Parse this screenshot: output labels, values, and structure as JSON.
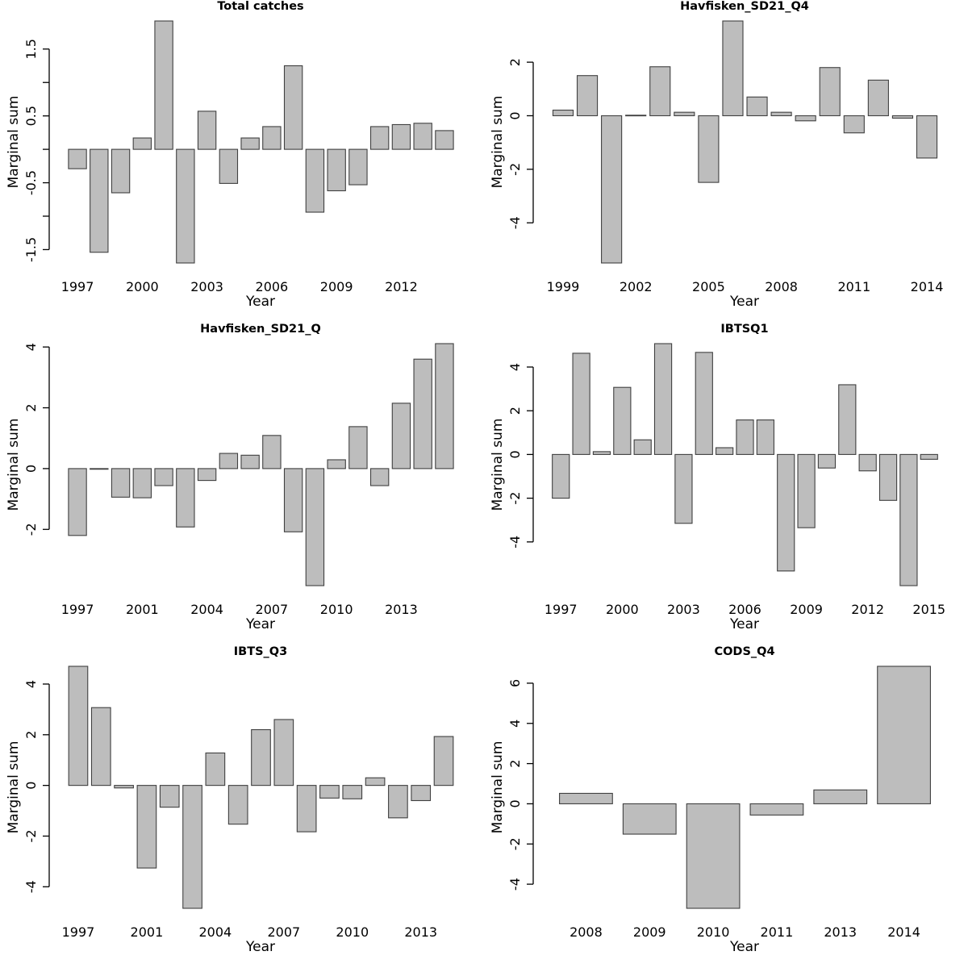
{
  "colors": {
    "background": "#ffffff",
    "bar_fill": "#bdbdbd",
    "bar_stroke": "#404040",
    "axis": "#000000",
    "text": "#000000"
  },
  "chart_data": [
    {
      "type": "bar",
      "title": "Total catches",
      "xlabel": "Year",
      "ylabel": "Marginal sum",
      "categories": [
        1997,
        1998,
        1999,
        2000,
        2001,
        2002,
        2003,
        2004,
        2005,
        2006,
        2007,
        2008,
        2009,
        2010,
        2011,
        2012,
        2013,
        2014
      ],
      "values": [
        -0.29,
        -1.54,
        -0.65,
        0.17,
        1.92,
        -1.7,
        0.57,
        -0.51,
        0.17,
        0.34,
        1.25,
        -0.94,
        -0.62,
        -0.53,
        0.34,
        0.37,
        0.39,
        0.28
      ],
      "ytick_values": [
        -1.5,
        -1,
        -0.5,
        0,
        0.5,
        1,
        1.5
      ],
      "ytick_labels": [
        "-1.5",
        "",
        "-0.5",
        "",
        "0.5",
        "",
        "1.5"
      ],
      "xtick_indices": [
        0,
        3,
        6,
        9,
        12,
        15
      ],
      "xtick_labels": [
        "1997",
        "2000",
        "2003",
        "2006",
        "2009",
        "2012"
      ],
      "grid": false,
      "legend": null
    },
    {
      "type": "bar",
      "title": "Havfisken_SD21_Q4",
      "xlabel": "Year",
      "ylabel": "Marginal sum",
      "categories": [
        1999,
        2000,
        2001,
        2002,
        2003,
        2004,
        2005,
        2006,
        2007,
        2008,
        2009,
        2010,
        2011,
        2012,
        2013,
        2014
      ],
      "values": [
        0.21,
        1.5,
        -5.5,
        0.02,
        1.83,
        0.13,
        -2.49,
        3.54,
        0.7,
        0.13,
        -0.19,
        1.8,
        -0.64,
        1.33,
        -0.09,
        -1.58
      ],
      "ytick_values": [
        -4,
        -2,
        0,
        2
      ],
      "ytick_labels": [
        "-4",
        "-2",
        "0",
        "2"
      ],
      "xtick_indices": [
        0,
        3,
        6,
        9,
        12,
        15
      ],
      "xtick_labels": [
        "1999",
        "2002",
        "2005",
        "2008",
        "2011",
        "2014"
      ],
      "grid": false,
      "legend": null
    },
    {
      "type": "bar",
      "title": "Havfisken_SD21_Q",
      "xlabel": "Year",
      "ylabel": "Marginal sum",
      "categories": [
        1997,
        1999,
        2000,
        2001,
        2002,
        2003,
        2004,
        2005,
        2006,
        2007,
        2008,
        2009,
        2010,
        2011,
        2012,
        2013,
        2014,
        2015
      ],
      "values": [
        -2.2,
        -0.02,
        -0.94,
        -0.96,
        -0.56,
        -1.92,
        -0.39,
        0.5,
        0.44,
        1.09,
        -2.08,
        -3.85,
        0.29,
        1.38,
        -0.56,
        2.15,
        3.6,
        4.11
      ],
      "ytick_values": [
        -2,
        0,
        2,
        4
      ],
      "ytick_labels": [
        "-2",
        "0",
        "2",
        "4"
      ],
      "xtick_indices": [
        0,
        3,
        6,
        9,
        12,
        15
      ],
      "xtick_labels": [
        "1997",
        "2001",
        "2004",
        "2007",
        "2010",
        "2013"
      ],
      "grid": false,
      "legend": null
    },
    {
      "type": "bar",
      "title": "IBTSQ1",
      "xlabel": "Year",
      "ylabel": "Marginal sum",
      "categories": [
        1997,
        1998,
        1999,
        2000,
        2001,
        2002,
        2003,
        2004,
        2005,
        2006,
        2007,
        2008,
        2009,
        2010,
        2011,
        2012,
        2013,
        2014,
        2015
      ],
      "values": [
        -2.0,
        4.63,
        0.13,
        3.07,
        0.67,
        5.07,
        -3.15,
        4.67,
        0.31,
        1.58,
        1.58,
        -5.33,
        -3.35,
        -0.62,
        3.19,
        -0.75,
        -2.1,
        -6.0,
        -0.22
      ],
      "ytick_values": [
        -4,
        -2,
        0,
        2,
        4
      ],
      "ytick_labels": [
        "-4",
        "-2",
        "0",
        "2",
        "4"
      ],
      "xtick_indices": [
        0,
        3,
        6,
        9,
        12,
        15,
        18
      ],
      "xtick_labels": [
        "1997",
        "2000",
        "2003",
        "2006",
        "2009",
        "2012",
        "2015"
      ],
      "grid": false,
      "legend": null
    },
    {
      "type": "bar",
      "title": "IBTS_Q3",
      "xlabel": "Year",
      "ylabel": "Marginal sum",
      "categories": [
        1997,
        1999,
        2000,
        2001,
        2002,
        2003,
        2004,
        2005,
        2006,
        2007,
        2008,
        2009,
        2010,
        2011,
        2012,
        2013,
        2014
      ],
      "values": [
        4.7,
        3.07,
        -0.1,
        -3.26,
        -0.86,
        -4.85,
        1.28,
        -1.53,
        2.2,
        2.6,
        -1.83,
        -0.5,
        -0.53,
        0.3,
        -1.28,
        -0.6,
        1.93
      ],
      "ytick_values": [
        -4,
        -2,
        0,
        2,
        4
      ],
      "ytick_labels": [
        "-4",
        "-2",
        "0",
        "2",
        "4"
      ],
      "xtick_indices": [
        0,
        3,
        6,
        9,
        12,
        15
      ],
      "xtick_labels": [
        "1997",
        "2001",
        "2004",
        "2007",
        "2010",
        "2013"
      ],
      "grid": false,
      "legend": null
    },
    {
      "type": "bar",
      "title": "CODS_Q4",
      "xlabel": "Year",
      "ylabel": "Marginal sum",
      "categories": [
        2008,
        2009,
        2010,
        2011,
        2013,
        2014
      ],
      "values": [
        0.52,
        -1.51,
        -5.2,
        -0.56,
        0.69,
        6.84
      ],
      "ytick_values": [
        -4,
        -2,
        0,
        2,
        4,
        6
      ],
      "ytick_labels": [
        "-4",
        "-2",
        "0",
        "2",
        "4",
        "6"
      ],
      "xtick_indices": [
        0,
        1,
        2,
        3,
        4,
        5
      ],
      "xtick_labels": [
        "2008",
        "2009",
        "2010",
        "2011",
        "2013",
        "2014"
      ],
      "grid": false,
      "legend": null
    }
  ]
}
